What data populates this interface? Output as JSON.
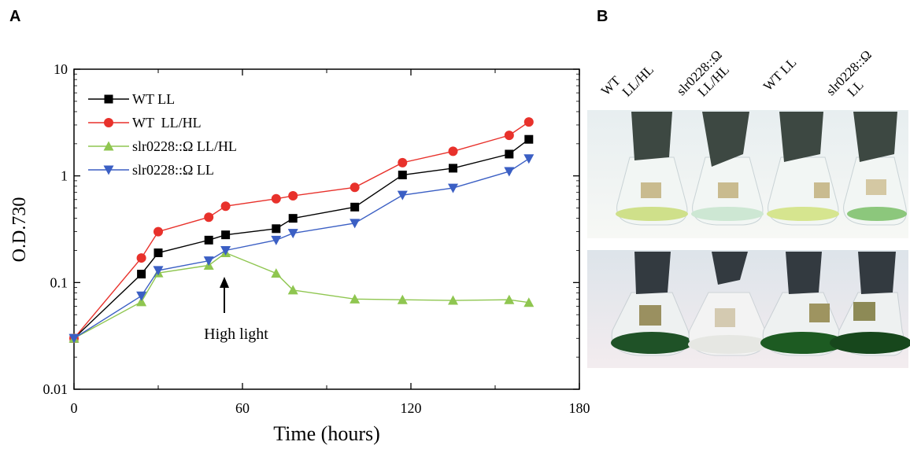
{
  "panel_a": {
    "letter": "A"
  },
  "panel_b": {
    "letter": "B",
    "flask_labels": [
      {
        "line1": "WT",
        "line2": "LL/HL"
      },
      {
        "line1": "slr0228::Ω",
        "line2": "LL/HL"
      },
      {
        "line1": "WT LL",
        "line2": ""
      },
      {
        "line1": "slr0228::Ω",
        "line2": "LL"
      }
    ]
  },
  "chart_data": {
    "type": "line",
    "xlabel": "Time (hours)",
    "ylabel": "O.D.730",
    "xlim": [
      0,
      180
    ],
    "ylim": [
      0.01,
      10
    ],
    "yscale": "log",
    "xticks": [
      0,
      60,
      120,
      180
    ],
    "yticks": [
      {
        "value": 0.01,
        "label": "0.01"
      },
      {
        "value": 0.1,
        "label": "0.1"
      },
      {
        "value": 1,
        "label": "1"
      },
      {
        "value": 10,
        "label": "10"
      }
    ],
    "legend_position": "top-left",
    "annotation": {
      "text": "High light",
      "x": 54,
      "y": 0.1
    },
    "series": [
      {
        "name": "WT LL",
        "color": "#000000",
        "marker": "square",
        "x": [
          0,
          24,
          30,
          48,
          54,
          72,
          78,
          100,
          117,
          135,
          155,
          162
        ],
        "y": [
          0.03,
          0.12,
          0.19,
          0.25,
          0.28,
          0.32,
          0.4,
          0.51,
          1.02,
          1.18,
          1.6,
          2.2
        ]
      },
      {
        "name": "WT  LL/HL",
        "color": "#e8312b",
        "marker": "circle",
        "x": [
          0,
          24,
          30,
          48,
          54,
          72,
          78,
          100,
          117,
          135,
          155,
          162
        ],
        "y": [
          0.03,
          0.17,
          0.3,
          0.41,
          0.52,
          0.61,
          0.65,
          0.78,
          1.33,
          1.7,
          2.4,
          3.2
        ]
      },
      {
        "name": "slr0228::Ω LL/HL",
        "color": "#8fc650",
        "marker": "triangle-up",
        "x": [
          0,
          24,
          30,
          48,
          54,
          72,
          78,
          100,
          117,
          135,
          155,
          162
        ],
        "y": [
          0.03,
          0.066,
          0.123,
          0.145,
          0.19,
          0.122,
          0.085,
          0.07,
          0.069,
          0.068,
          0.069,
          0.065
        ]
      },
      {
        "name": "slr0228::Ω LL",
        "color": "#3b5fc4",
        "marker": "triangle-down",
        "x": [
          0,
          24,
          30,
          48,
          54,
          72,
          78,
          100,
          117,
          135,
          155,
          162
        ],
        "y": [
          0.03,
          0.075,
          0.13,
          0.16,
          0.2,
          0.25,
          0.29,
          0.36,
          0.66,
          0.77,
          1.1,
          1.45
        ]
      }
    ]
  }
}
